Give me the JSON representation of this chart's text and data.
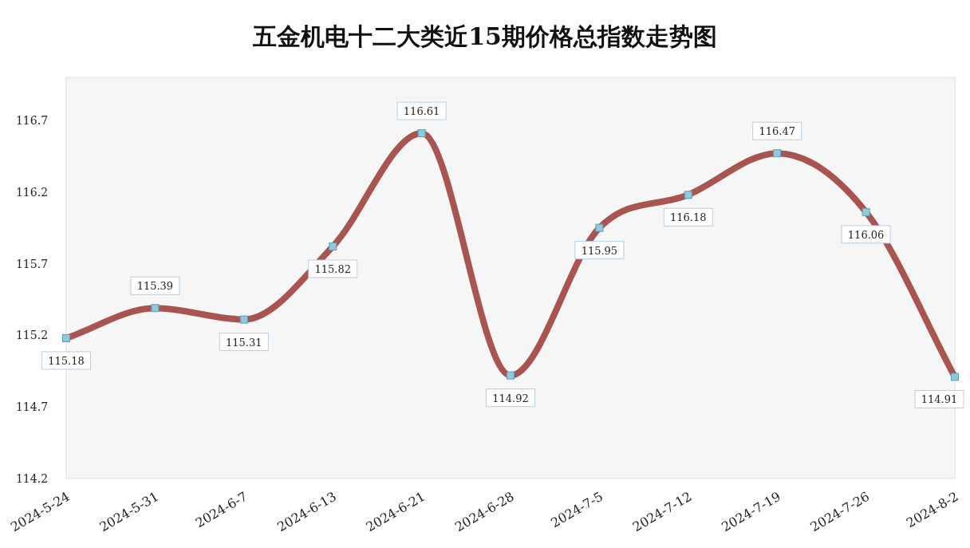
{
  "chart_data": {
    "type": "line",
    "title": "五金机电十二大类近15期价格总指数走势图",
    "categories": [
      "2024-5-24",
      "2024-5-31",
      "2024-6-7",
      "2024-6-13",
      "2024-6-21",
      "2024-6-28",
      "2024-7-5",
      "2024-7-12",
      "2024-7-19",
      "2024-7-26",
      "2024-8-2"
    ],
    "series": [
      {
        "color": "#a85450",
        "values": [
          115.18,
          115.39,
          115.31,
          115.82,
          116.61,
          114.92,
          115.95,
          116.18,
          116.47,
          116.06,
          114.91
        ]
      }
    ],
    "ylim": [
      114.2,
      117.0
    ],
    "yticks": [
      114.2,
      114.7,
      115.2,
      115.7,
      116.2,
      116.7
    ],
    "data_labels": true,
    "marker": "square",
    "grid": false
  }
}
